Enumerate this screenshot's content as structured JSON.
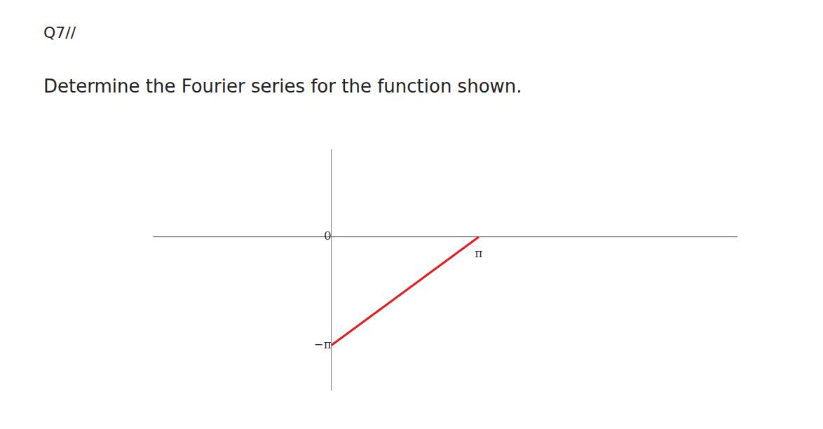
{
  "question": {
    "number": "Q7//",
    "text": "Determine the Fourier series for the function shown."
  },
  "chart_data": {
    "type": "line",
    "x": [
      0,
      3.14159
    ],
    "series": [
      {
        "values": [
          -3.14159,
          0
        ],
        "color": "#e31b1b"
      }
    ],
    "xlim": [
      -3.81,
      8.66
    ],
    "ylim": [
      -4.45,
      2.54
    ],
    "xticks": [
      {
        "value": 3.14159,
        "label": "π"
      }
    ],
    "yticks": [
      0,
      {
        "value": -3.14159,
        "label": "−π"
      }
    ],
    "grid": false
  }
}
